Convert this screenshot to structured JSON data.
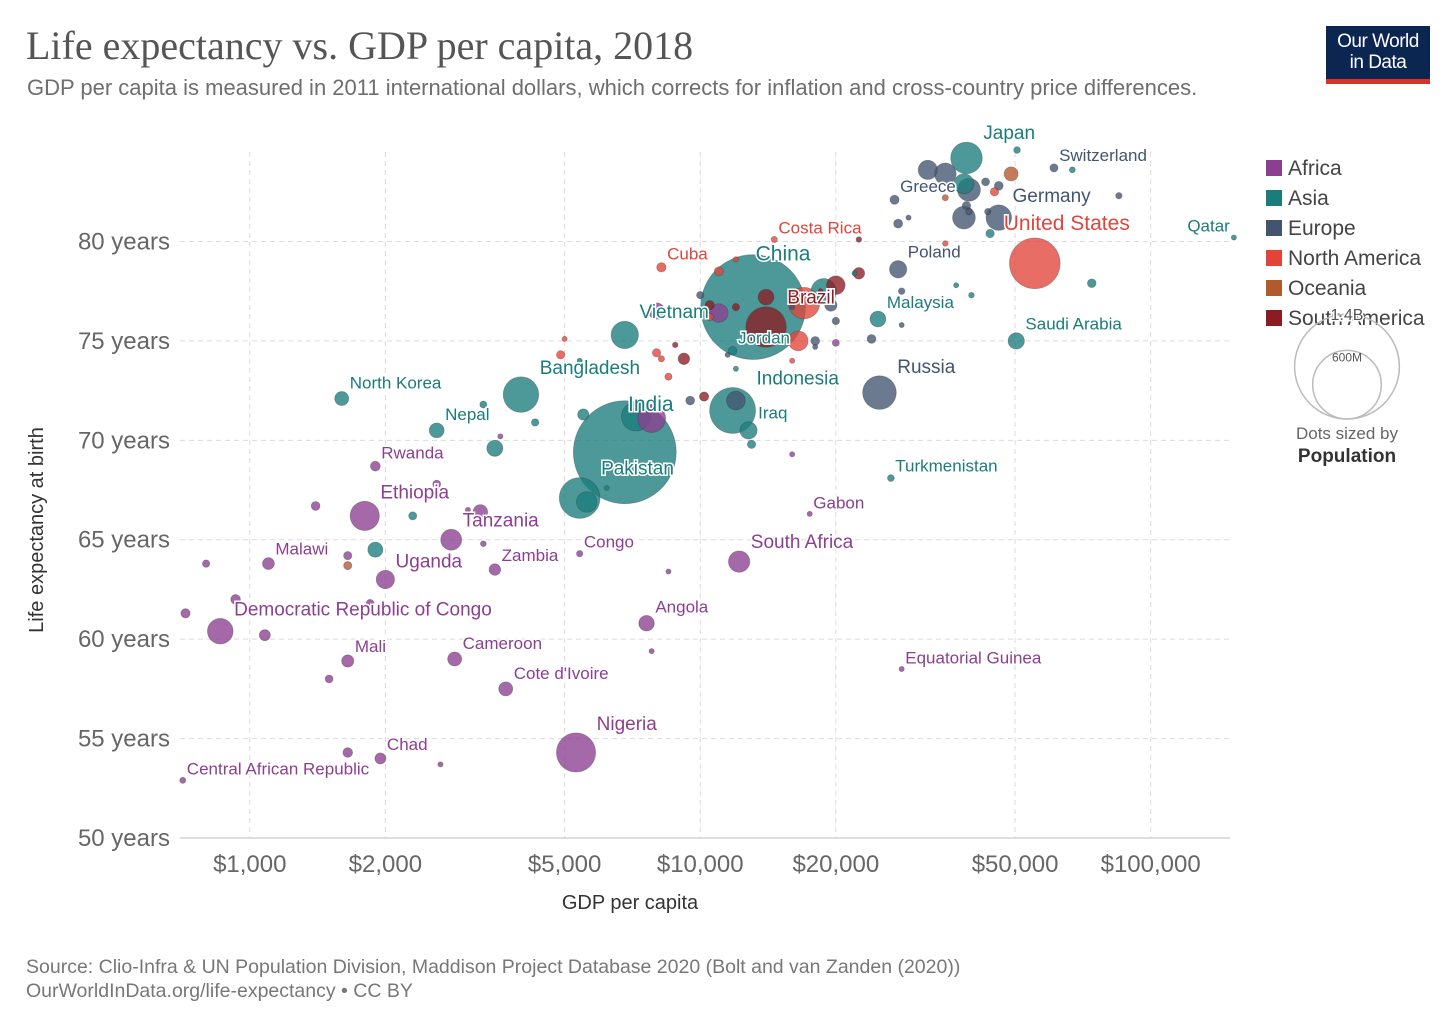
{
  "title": "Life expectancy vs. GDP per capita, 2018",
  "subtitle": "GDP per capita is measured in 2011 international dollars, which corrects for inflation and cross-country price differences.",
  "logo": {
    "line1": "Our World",
    "line2": "in Data",
    "bg_color": "#0b2650",
    "accent_color": "#d8322a"
  },
  "source": "Source: Clio-Infra & UN Population Division, Maddison Project Database 2020 (Bolt and van Zanden (2020))",
  "license": "OurWorldInData.org/life-expectancy • CC BY",
  "chart_data": {
    "type": "scatter",
    "x_scale": "log",
    "xlabel": "GDP per capita",
    "ylabel": "Life expectancy at birth",
    "xlim": [
      700,
      150000
    ],
    "ylim": [
      50,
      84.5
    ],
    "x_ticks": [
      {
        "v": 1000,
        "label": "$1,000"
      },
      {
        "v": 2000,
        "label": "$2,000"
      },
      {
        "v": 5000,
        "label": "$5,000"
      },
      {
        "v": 10000,
        "label": "$10,000"
      },
      {
        "v": 20000,
        "label": "$20,000"
      },
      {
        "v": 50000,
        "label": "$50,000"
      },
      {
        "v": 100000,
        "label": "$100,000"
      }
    ],
    "y_ticks": [
      {
        "v": 50,
        "label": "50 years"
      },
      {
        "v": 55,
        "label": "55 years"
      },
      {
        "v": 60,
        "label": "60 years"
      },
      {
        "v": 65,
        "label": "65 years"
      },
      {
        "v": 70,
        "label": "70 years"
      },
      {
        "v": 75,
        "label": "75 years"
      },
      {
        "v": 80,
        "label": "80 years"
      }
    ],
    "grid": true,
    "legend_position": "right",
    "continents": [
      {
        "name": "Africa",
        "color": "#8c3f91"
      },
      {
        "name": "Asia",
        "color": "#1b7c7c"
      },
      {
        "name": "Europe",
        "color": "#435470"
      },
      {
        "name": "North America",
        "color": "#e1453a"
      },
      {
        "name": "Oceania",
        "color": "#b3592e"
      },
      {
        "name": "South America",
        "color": "#8b1c24"
      }
    ],
    "size_legend": {
      "max_label": "1.4B",
      "mid_label": "600M",
      "caption_line1": "Dots sized by",
      "caption_line2": "Population",
      "max_value": 1400,
      "mid_value": 600
    },
    "labeled_points": [
      {
        "name": "Japan",
        "gdp": 39000,
        "life": 84.2,
        "pop": 127,
        "continent": "Asia"
      },
      {
        "name": "Switzerland",
        "gdp": 61000,
        "life": 83.7,
        "pop": 8.5,
        "continent": "Europe"
      },
      {
        "name": "Greece",
        "gdp": 27000,
        "life": 82.1,
        "pop": 10.7,
        "continent": "Europe"
      },
      {
        "name": "Germany",
        "gdp": 46000,
        "life": 81.2,
        "pop": 83,
        "continent": "Europe"
      },
      {
        "name": "Qatar",
        "gdp": 153000,
        "life": 80.2,
        "pop": 2.8,
        "continent": "Asia"
      },
      {
        "name": "Costa Rica",
        "gdp": 14600,
        "life": 80.1,
        "pop": 5,
        "continent": "North America"
      },
      {
        "name": "United States",
        "gdp": 55300,
        "life": 78.9,
        "pop": 327,
        "continent": "North America"
      },
      {
        "name": "Cuba",
        "gdp": 8200,
        "life": 78.7,
        "pop": 11.3,
        "continent": "North America"
      },
      {
        "name": "China",
        "gdp": 13100,
        "life": 76.7,
        "pop": 1400,
        "continent": "Asia"
      },
      {
        "name": "Poland",
        "gdp": 27500,
        "life": 78.6,
        "pop": 38,
        "continent": "Europe"
      },
      {
        "name": "Brazil",
        "gdp": 14000,
        "life": 75.7,
        "pop": 209,
        "continent": "South America"
      },
      {
        "name": "Malaysia",
        "gdp": 24800,
        "life": 76.1,
        "pop": 32,
        "continent": "Asia"
      },
      {
        "name": "Vietnam",
        "gdp": 6800,
        "life": 75.3,
        "pop": 96,
        "continent": "Asia"
      },
      {
        "name": "Jordan",
        "gdp": 11800,
        "life": 74.5,
        "pop": 10,
        "continent": "Asia"
      },
      {
        "name": "Saudi Arabia",
        "gdp": 50300,
        "life": 75.0,
        "pop": 34,
        "continent": "Asia"
      },
      {
        "name": "Bangladesh",
        "gdp": 4000,
        "life": 72.3,
        "pop": 161,
        "continent": "Asia"
      },
      {
        "name": "North Korea",
        "gdp": 1600,
        "life": 72.1,
        "pop": 25,
        "continent": "Asia"
      },
      {
        "name": "Indonesia",
        "gdp": 11800,
        "life": 71.5,
        "pop": 268,
        "continent": "Asia"
      },
      {
        "name": "Russia",
        "gdp": 25000,
        "life": 72.4,
        "pop": 144,
        "continent": "Europe"
      },
      {
        "name": "Nepal",
        "gdp": 2600,
        "life": 70.5,
        "pop": 28,
        "continent": "Asia"
      },
      {
        "name": "India",
        "gdp": 6800,
        "life": 69.4,
        "pop": 1350,
        "continent": "Asia"
      },
      {
        "name": "Iraq",
        "gdp": 12800,
        "life": 70.5,
        "pop": 38,
        "continent": "Asia"
      },
      {
        "name": "Rwanda",
        "gdp": 1900,
        "life": 68.7,
        "pop": 12.3,
        "continent": "Africa"
      },
      {
        "name": "Turkmenistan",
        "gdp": 26500,
        "life": 68.1,
        "pop": 5.9,
        "continent": "Asia"
      },
      {
        "name": "Pakistan",
        "gdp": 5400,
        "life": 67.1,
        "pop": 212,
        "continent": "Asia"
      },
      {
        "name": "Ethiopia",
        "gdp": 1800,
        "life": 66.2,
        "pop": 109,
        "continent": "Africa"
      },
      {
        "name": "Gabon",
        "gdp": 17500,
        "life": 66.3,
        "pop": 2.1,
        "continent": "Africa"
      },
      {
        "name": "Tanzania",
        "gdp": 2800,
        "life": 65.0,
        "pop": 56,
        "continent": "Africa"
      },
      {
        "name": "Congo",
        "gdp": 5400,
        "life": 64.3,
        "pop": 5.2,
        "continent": "Africa"
      },
      {
        "name": "South Africa",
        "gdp": 12200,
        "life": 63.9,
        "pop": 58,
        "continent": "Africa"
      },
      {
        "name": "Malawi",
        "gdp": 1100,
        "life": 63.8,
        "pop": 18,
        "continent": "Africa"
      },
      {
        "name": "Zambia",
        "gdp": 3500,
        "life": 63.5,
        "pop": 17,
        "continent": "Africa"
      },
      {
        "name": "Uganda",
        "gdp": 2000,
        "life": 63.0,
        "pop": 43,
        "continent": "Africa"
      },
      {
        "name": "Angola",
        "gdp": 7600,
        "life": 60.8,
        "pop": 31,
        "continent": "Africa"
      },
      {
        "name": "Democratic Republic of Congo",
        "gdp": 860,
        "life": 60.4,
        "pop": 84,
        "continent": "Africa"
      },
      {
        "name": "Cameroon",
        "gdp": 2850,
        "life": 59.0,
        "pop": 25,
        "continent": "Africa"
      },
      {
        "name": "Mali",
        "gdp": 1650,
        "life": 58.9,
        "pop": 19,
        "continent": "Africa"
      },
      {
        "name": "Equatorial Guinea",
        "gdp": 28000,
        "life": 58.5,
        "pop": 1.3,
        "continent": "Africa"
      },
      {
        "name": "Cote d'Ivoire",
        "gdp": 3700,
        "life": 57.5,
        "pop": 25,
        "continent": "Africa"
      },
      {
        "name": "Nigeria",
        "gdp": 5300,
        "life": 54.3,
        "pop": 196,
        "continent": "Africa"
      },
      {
        "name": "Chad",
        "gdp": 1950,
        "life": 54.0,
        "pop": 15.5,
        "continent": "Africa"
      },
      {
        "name": "Central African Republic",
        "gdp": 710,
        "life": 52.9,
        "pop": 4.7,
        "continent": "Africa"
      }
    ],
    "other_points": [
      {
        "gdp": 50500,
        "life": 84.6,
        "pop": 5.7,
        "continent": "Asia"
      },
      {
        "gdp": 32000,
        "life": 83.6,
        "pop": 47,
        "continent": "Europe"
      },
      {
        "gdp": 35000,
        "life": 83.4,
        "pop": 60,
        "continent": "Europe"
      },
      {
        "gdp": 38500,
        "life": 82.9,
        "pop": 51,
        "continent": "Asia"
      },
      {
        "gdp": 49000,
        "life": 83.4,
        "pop": 25,
        "continent": "Oceania"
      },
      {
        "gdp": 39500,
        "life": 82.6,
        "pop": 67,
        "continent": "Europe"
      },
      {
        "gdp": 43000,
        "life": 83.0,
        "pop": 8,
        "continent": "Europe"
      },
      {
        "gdp": 45000,
        "life": 82.5,
        "pop": 9,
        "continent": "North America"
      },
      {
        "gdp": 85000,
        "life": 82.3,
        "pop": 5.3,
        "continent": "Europe"
      },
      {
        "gdp": 35000,
        "life": 82.2,
        "pop": 4.9,
        "continent": "Oceania"
      },
      {
        "gdp": 46000,
        "life": 82.8,
        "pop": 10,
        "continent": "Europe"
      },
      {
        "gdp": 39000,
        "life": 81.8,
        "pop": 9,
        "continent": "Europe"
      },
      {
        "gdp": 39500,
        "life": 81.5,
        "pop": 5.8,
        "continent": "Europe"
      },
      {
        "gdp": 43500,
        "life": 81.5,
        "pop": 5.5,
        "continent": "Europe"
      },
      {
        "gdp": 38500,
        "life": 81.2,
        "pop": 66,
        "continent": "Europe"
      },
      {
        "gdp": 29000,
        "life": 81.2,
        "pop": 2.1,
        "continent": "Europe"
      },
      {
        "gdp": 27500,
        "life": 80.9,
        "pop": 10.3,
        "continent": "Europe"
      },
      {
        "gdp": 44000,
        "life": 80.4,
        "pop": 9,
        "continent": "Asia"
      },
      {
        "gdp": 35000,
        "life": 79.9,
        "pop": 4,
        "continent": "North America"
      },
      {
        "gdp": 22500,
        "life": 80.1,
        "pop": 4,
        "continent": "South America"
      },
      {
        "gdp": 67000,
        "life": 83.6,
        "pop": 4.5,
        "continent": "Asia"
      },
      {
        "gdp": 74000,
        "life": 77.9,
        "pop": 9.6,
        "continent": "Asia"
      },
      {
        "gdp": 40000,
        "life": 77.3,
        "pop": 4.1,
        "continent": "Asia"
      },
      {
        "gdp": 37000,
        "life": 77.8,
        "pop": 1.6,
        "continent": "Asia"
      },
      {
        "gdp": 28000,
        "life": 77.5,
        "pop": 5.5,
        "continent": "Europe"
      },
      {
        "gdp": 22500,
        "life": 78.4,
        "pop": 17,
        "continent": "South America"
      },
      {
        "gdp": 22000,
        "life": 78.4,
        "pop": 1.3,
        "continent": "Asia"
      },
      {
        "gdp": 20000,
        "life": 77.8,
        "pop": 44,
        "continent": "South America"
      },
      {
        "gdp": 18500,
        "life": 77.5,
        "pop": 3.5,
        "continent": "South America"
      },
      {
        "gdp": 17000,
        "life": 76.9,
        "pop": 126,
        "continent": "North America"
      },
      {
        "gdp": 18800,
        "life": 77.5,
        "pop": 82,
        "continent": "Asia"
      },
      {
        "gdp": 19500,
        "life": 76.8,
        "pop": 19,
        "continent": "Europe"
      },
      {
        "gdp": 16000,
        "life": 76.7,
        "pop": 2,
        "continent": "Europe"
      },
      {
        "gdp": 20000,
        "life": 76.0,
        "pop": 7,
        "continent": "Europe"
      },
      {
        "gdp": 24000,
        "life": 75.1,
        "pop": 10,
        "continent": "Europe"
      },
      {
        "gdp": 28000,
        "life": 75.8,
        "pop": 3,
        "continent": "Europe"
      },
      {
        "gdp": 18000,
        "life": 75.0,
        "pop": 10,
        "continent": "Europe"
      },
      {
        "gdp": 18000,
        "life": 74.7,
        "pop": 2.9,
        "continent": "Europe"
      },
      {
        "gdp": 20000,
        "life": 74.9,
        "pop": 6.3,
        "continent": "Africa"
      },
      {
        "gdp": 16500,
        "life": 75.0,
        "pop": 50,
        "continent": "North America"
      },
      {
        "gdp": 16000,
        "life": 74.0,
        "pop": 3.2,
        "continent": "North America"
      },
      {
        "gdp": 14000,
        "life": 77.2,
        "pop": 32,
        "continent": "South America"
      },
      {
        "gdp": 12000,
        "life": 76.7,
        "pop": 7,
        "continent": "South America"
      },
      {
        "gdp": 10500,
        "life": 76.8,
        "pop": 11,
        "continent": "South America"
      },
      {
        "gdp": 10000,
        "life": 77.3,
        "pop": 6.9,
        "continent": "Europe"
      },
      {
        "gdp": 11000,
        "life": 78.5,
        "pop": 10.7,
        "continent": "North America"
      },
      {
        "gdp": 12000,
        "life": 79.1,
        "pop": 3.7,
        "continent": "North America"
      },
      {
        "gdp": 11000,
        "life": 76.4,
        "pop": 44,
        "continent": "Africa"
      },
      {
        "gdp": 10500,
        "life": 76.2,
        "pop": 7,
        "continent": "North America"
      },
      {
        "gdp": 8000,
        "life": 76.5,
        "pop": 34,
        "continent": "Africa"
      },
      {
        "gdp": 8800,
        "life": 74.8,
        "pop": 3.9,
        "continent": "South America"
      },
      {
        "gdp": 8000,
        "life": 74.4,
        "pop": 9,
        "continent": "North America"
      },
      {
        "gdp": 8200,
        "life": 74.1,
        "pop": 5,
        "continent": "North America"
      },
      {
        "gdp": 9200,
        "life": 74.1,
        "pop": 17,
        "continent": "South America"
      },
      {
        "gdp": 11500,
        "life": 74.3,
        "pop": 3.2,
        "continent": "Europe"
      },
      {
        "gdp": 12000,
        "life": 73.6,
        "pop": 2.9,
        "continent": "Asia"
      },
      {
        "gdp": 5000,
        "life": 75.1,
        "pop": 0.4,
        "continent": "North America"
      },
      {
        "gdp": 4900,
        "life": 74.3,
        "pop": 9,
        "continent": "North America"
      },
      {
        "gdp": 5400,
        "life": 74.0,
        "pop": 3.1,
        "continent": "Asia"
      },
      {
        "gdp": 8500,
        "life": 73.2,
        "pop": 6.5,
        "continent": "North America"
      },
      {
        "gdp": 10200,
        "life": 72.2,
        "pop": 11,
        "continent": "South America"
      },
      {
        "gdp": 9500,
        "life": 72.0,
        "pop": 10,
        "continent": "Europe"
      },
      {
        "gdp": 12000,
        "life": 72.0,
        "pop": 45,
        "continent": "Europe"
      },
      {
        "gdp": 7800,
        "life": 71.1,
        "pop": 100,
        "continent": "Africa"
      },
      {
        "gdp": 7200,
        "life": 71.2,
        "pop": 107,
        "continent": "Asia"
      },
      {
        "gdp": 5500,
        "life": 71.3,
        "pop": 16,
        "continent": "Asia"
      },
      {
        "gdp": 4300,
        "life": 70.9,
        "pop": 7,
        "continent": "Asia"
      },
      {
        "gdp": 3300,
        "life": 71.8,
        "pop": 6.3,
        "continent": "Asia"
      },
      {
        "gdp": 3600,
        "life": 70.2,
        "pop": 1.2,
        "continent": "Africa"
      },
      {
        "gdp": 3500,
        "life": 69.6,
        "pop": 33,
        "continent": "Asia"
      },
      {
        "gdp": 13000,
        "life": 69.8,
        "pop": 9,
        "continent": "Asia"
      },
      {
        "gdp": 16000,
        "life": 69.3,
        "pop": 2.3,
        "continent": "Africa"
      },
      {
        "gdp": 5600,
        "life": 66.9,
        "pop": 54,
        "continent": "Asia"
      },
      {
        "gdp": 6200,
        "life": 67.6,
        "pop": 0.8,
        "continent": "Asia"
      },
      {
        "gdp": 2600,
        "life": 67.8,
        "pop": 8,
        "continent": "Africa"
      },
      {
        "gdp": 2300,
        "life": 66.2,
        "pop": 8.4,
        "continent": "Asia"
      },
      {
        "gdp": 1400,
        "life": 66.7,
        "pop": 10,
        "continent": "Africa"
      },
      {
        "gdp": 3050,
        "life": 66.5,
        "pop": 2,
        "continent": "Africa"
      },
      {
        "gdp": 3250,
        "life": 66.4,
        "pop": 27,
        "continent": "Africa"
      },
      {
        "gdp": 1900,
        "life": 64.5,
        "pop": 29,
        "continent": "Asia"
      },
      {
        "gdp": 1650,
        "life": 64.2,
        "pop": 8.8,
        "continent": "Africa"
      },
      {
        "gdp": 1650,
        "life": 63.7,
        "pop": 8.6,
        "continent": "Oceania"
      },
      {
        "gdp": 3300,
        "life": 64.8,
        "pop": 4.2,
        "continent": "Africa"
      },
      {
        "gdp": 800,
        "life": 63.8,
        "pop": 7,
        "continent": "Africa"
      },
      {
        "gdp": 930,
        "life": 62.0,
        "pop": 12,
        "continent": "Africa"
      },
      {
        "gdp": 720,
        "life": 61.3,
        "pop": 11,
        "continent": "Africa"
      },
      {
        "gdp": 1080,
        "life": 60.2,
        "pop": 15.5,
        "continent": "Africa"
      },
      {
        "gdp": 1850,
        "life": 61.8,
        "pop": 8,
        "continent": "Africa"
      },
      {
        "gdp": 8500,
        "life": 63.4,
        "pop": 1.9,
        "continent": "Africa"
      },
      {
        "gdp": 7800,
        "life": 59.4,
        "pop": 1.5,
        "continent": "Africa"
      },
      {
        "gdp": 1500,
        "life": 58.0,
        "pop": 7.8,
        "continent": "Africa"
      },
      {
        "gdp": 1650,
        "life": 54.3,
        "pop": 12,
        "continent": "Africa"
      },
      {
        "gdp": 2650,
        "life": 53.7,
        "pop": 2.4,
        "continent": "Africa"
      }
    ]
  }
}
